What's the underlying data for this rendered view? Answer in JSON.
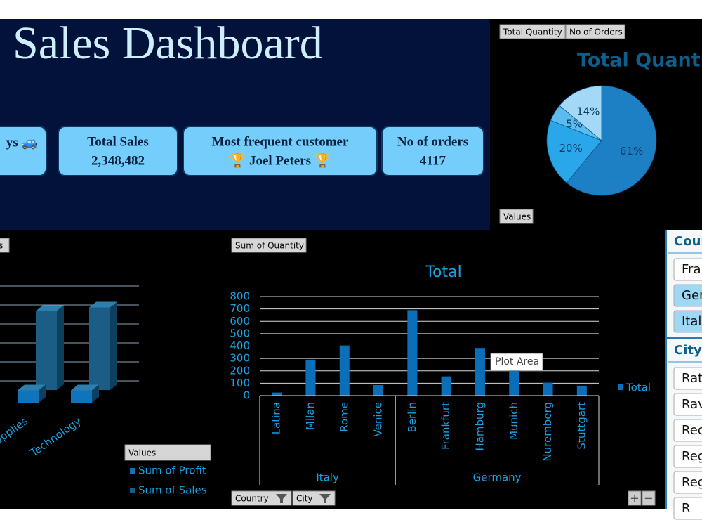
{
  "header": {
    "title": "Sales Dashboard"
  },
  "kpis": [
    {
      "label": "ys 🚙"
    },
    {
      "label": "Total Sales",
      "value": "2,348,482"
    },
    {
      "label": "Most frequent customer",
      "value": "🏆 Joel  Peters 🏆"
    },
    {
      "label": "No of orders",
      "value": "4117"
    }
  ],
  "pie_chart": {
    "type": "pie",
    "buttons": [
      "Total Quantity",
      "No of Orders"
    ],
    "values_button": "Values",
    "title": "Total Quantity",
    "values": [
      61,
      20,
      5,
      14
    ],
    "value_labels": [
      "61%",
      "20%",
      "5%",
      "14%"
    ],
    "colors": [
      "#1d7fc4",
      "#2aa7ea",
      "#5cbcf0",
      "#a3d8f6"
    ]
  },
  "bar3d_chart": {
    "type": "bar3d",
    "button": "Values",
    "legend_title": "Values",
    "categories": [
      "Office Supplies",
      "Technology"
    ],
    "ylim": [
      0,
      6
    ],
    "series": [
      {
        "name": "Sum of Profit",
        "color": "#0f74bc",
        "values": [
          0.7,
          0.7
        ]
      },
      {
        "name": "Sum of Sales",
        "color": "#1b5d85",
        "values": [
          4.5,
          4.7
        ]
      }
    ]
  },
  "column_chart": {
    "type": "bar",
    "button": "Sum of Quantity",
    "title": "Total",
    "groups": [
      {
        "name": "Italy",
        "categories": [
          "Latina",
          "Milan",
          "Rome",
          "Venice"
        ]
      },
      {
        "name": "Germany",
        "categories": [
          "Berlin",
          "Frankfurt",
          "Hamburg",
          "Munich",
          "Nuremberg",
          "Stuttgart"
        ]
      }
    ],
    "series": [
      {
        "name": "Total",
        "color": "#0a6fb8",
        "values": [
          25,
          290,
          405,
          85,
          690,
          155,
          385,
          200,
          105,
          80
        ]
      }
    ],
    "ylim": [
      0,
      800
    ],
    "yticks": [
      0,
      100,
      200,
      300,
      400,
      500,
      600,
      700,
      800
    ],
    "grid": true,
    "tooltip": "Plot Area",
    "filter_buttons": [
      "Country",
      "City"
    ],
    "zoom_buttons": [
      "+",
      "−"
    ]
  },
  "slicers": [
    {
      "title": "Coun",
      "items": [
        "Fra",
        "Ger",
        "Ital"
      ]
    },
    {
      "title": "City",
      "items": [
        "Rat",
        "Rav",
        "Rec",
        "Reg",
        "Reg",
        "R"
      ]
    }
  ]
}
